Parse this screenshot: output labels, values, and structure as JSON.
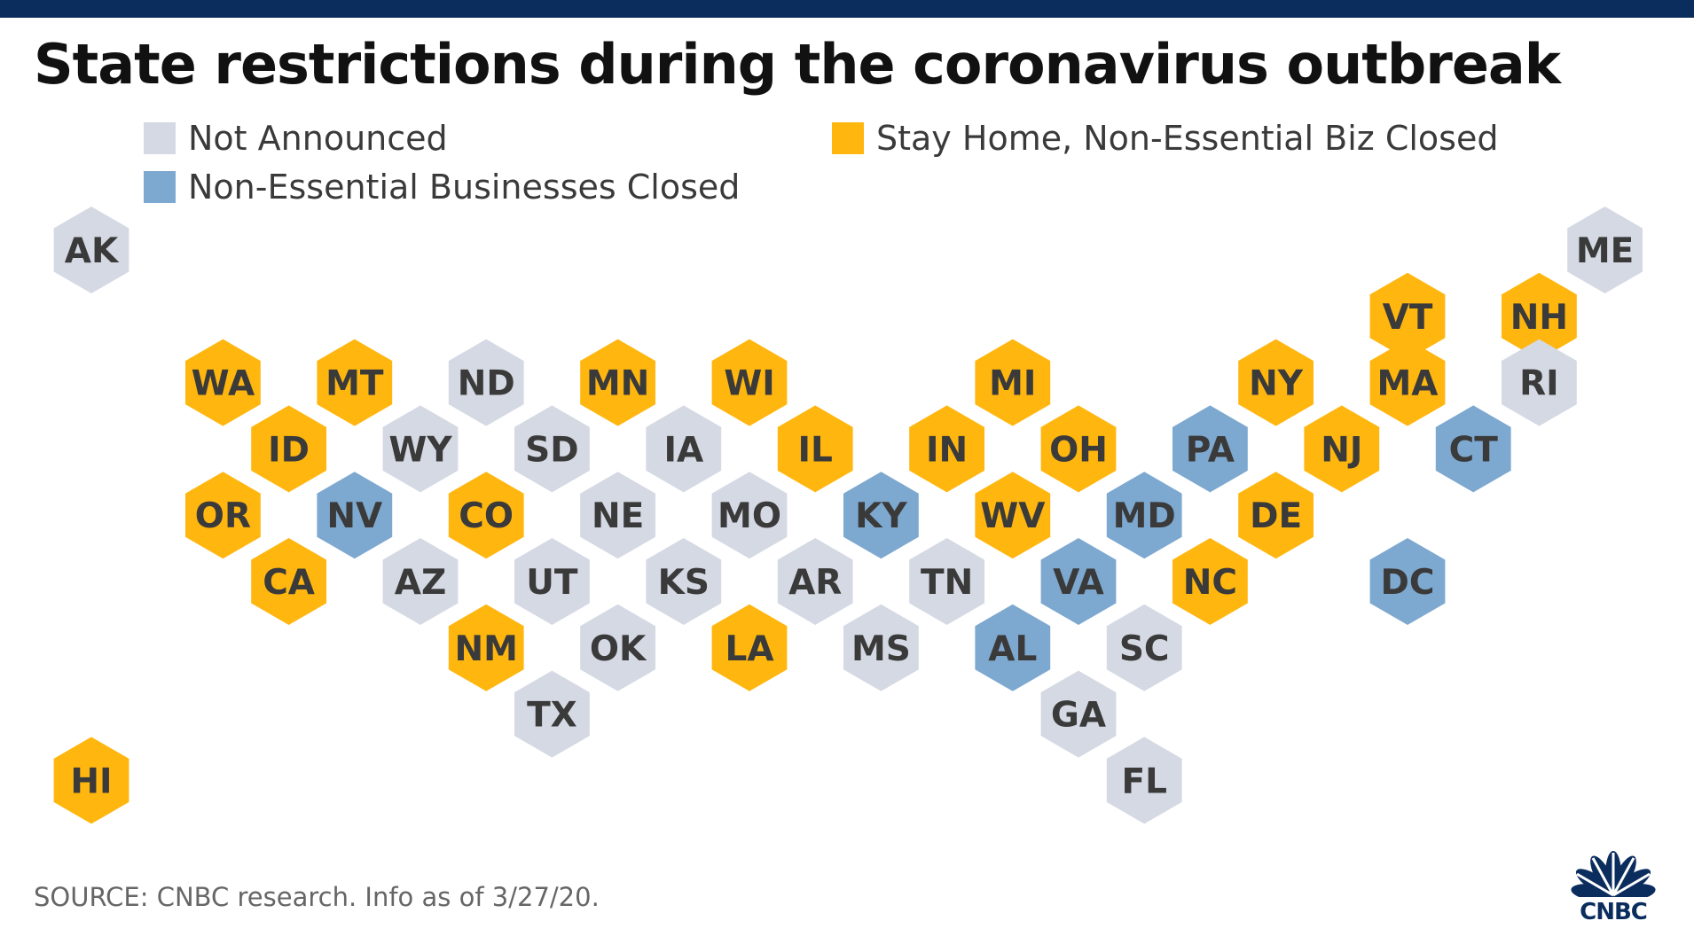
{
  "title": "State restrictions during the coronavirus outbreak",
  "legend": [
    {
      "key": "none",
      "label": "Not Announced",
      "color": "#d4d9e3"
    },
    {
      "key": "biz",
      "label": "Non-Essential Businesses Closed",
      "color": "#7da8cf"
    },
    {
      "key": "home",
      "label": "Stay Home, Non-Essential Biz Closed",
      "color": "#ffb60f"
    }
  ],
  "states": [
    {
      "code": "AK",
      "status": "none",
      "col": 0,
      "row": 0
    },
    {
      "code": "ME",
      "status": "none",
      "col": 23,
      "row": 0
    },
    {
      "code": "VT",
      "status": "home",
      "col": 20,
      "row": 1
    },
    {
      "code": "NH",
      "status": "home",
      "col": 22,
      "row": 1
    },
    {
      "code": "WA",
      "status": "home",
      "col": 2,
      "row": 2
    },
    {
      "code": "MT",
      "status": "home",
      "col": 4,
      "row": 2
    },
    {
      "code": "ND",
      "status": "none",
      "col": 6,
      "row": 2
    },
    {
      "code": "MN",
      "status": "home",
      "col": 8,
      "row": 2
    },
    {
      "code": "WI",
      "status": "home",
      "col": 10,
      "row": 2
    },
    {
      "code": "MI",
      "status": "home",
      "col": 14,
      "row": 2
    },
    {
      "code": "NY",
      "status": "home",
      "col": 18,
      "row": 2
    },
    {
      "code": "MA",
      "status": "home",
      "col": 20,
      "row": 2
    },
    {
      "code": "RI",
      "status": "none",
      "col": 22,
      "row": 2
    },
    {
      "code": "ID",
      "status": "home",
      "col": 3,
      "row": 3
    },
    {
      "code": "WY",
      "status": "none",
      "col": 5,
      "row": 3
    },
    {
      "code": "SD",
      "status": "none",
      "col": 7,
      "row": 3
    },
    {
      "code": "IA",
      "status": "none",
      "col": 9,
      "row": 3
    },
    {
      "code": "IL",
      "status": "home",
      "col": 11,
      "row": 3
    },
    {
      "code": "IN",
      "status": "home",
      "col": 13,
      "row": 3
    },
    {
      "code": "OH",
      "status": "home",
      "col": 15,
      "row": 3
    },
    {
      "code": "PA",
      "status": "biz",
      "col": 17,
      "row": 3
    },
    {
      "code": "NJ",
      "status": "home",
      "col": 19,
      "row": 3
    },
    {
      "code": "CT",
      "status": "biz",
      "col": 21,
      "row": 3
    },
    {
      "code": "OR",
      "status": "home",
      "col": 2,
      "row": 4
    },
    {
      "code": "NV",
      "status": "biz",
      "col": 4,
      "row": 4
    },
    {
      "code": "CO",
      "status": "home",
      "col": 6,
      "row": 4
    },
    {
      "code": "NE",
      "status": "none",
      "col": 8,
      "row": 4
    },
    {
      "code": "MO",
      "status": "none",
      "col": 10,
      "row": 4
    },
    {
      "code": "KY",
      "status": "biz",
      "col": 12,
      "row": 4
    },
    {
      "code": "WV",
      "status": "home",
      "col": 14,
      "row": 4
    },
    {
      "code": "MD",
      "status": "biz",
      "col": 16,
      "row": 4
    },
    {
      "code": "DE",
      "status": "home",
      "col": 18,
      "row": 4
    },
    {
      "code": "CA",
      "status": "home",
      "col": 3,
      "row": 5
    },
    {
      "code": "AZ",
      "status": "none",
      "col": 5,
      "row": 5
    },
    {
      "code": "UT",
      "status": "none",
      "col": 7,
      "row": 5
    },
    {
      "code": "KS",
      "status": "none",
      "col": 9,
      "row": 5
    },
    {
      "code": "AR",
      "status": "none",
      "col": 11,
      "row": 5
    },
    {
      "code": "TN",
      "status": "none",
      "col": 13,
      "row": 5
    },
    {
      "code": "VA",
      "status": "biz",
      "col": 15,
      "row": 5
    },
    {
      "code": "NC",
      "status": "home",
      "col": 17,
      "row": 5
    },
    {
      "code": "DC",
      "status": "biz",
      "col": 20,
      "row": 5
    },
    {
      "code": "NM",
      "status": "home",
      "col": 6,
      "row": 6
    },
    {
      "code": "OK",
      "status": "none",
      "col": 8,
      "row": 6
    },
    {
      "code": "LA",
      "status": "home",
      "col": 10,
      "row": 6
    },
    {
      "code": "MS",
      "status": "none",
      "col": 12,
      "row": 6
    },
    {
      "code": "AL",
      "status": "biz",
      "col": 14,
      "row": 6
    },
    {
      "code": "SC",
      "status": "none",
      "col": 16,
      "row": 6
    },
    {
      "code": "TX",
      "status": "none",
      "col": 7,
      "row": 7
    },
    {
      "code": "GA",
      "status": "none",
      "col": 15,
      "row": 7
    },
    {
      "code": "HI",
      "status": "home",
      "col": 0,
      "row": 8
    },
    {
      "code": "FL",
      "status": "none",
      "col": 16,
      "row": 8
    }
  ],
  "source": "SOURCE: CNBC research. Info as of 3/27/20.",
  "logo": {
    "text": "CNBC",
    "icon": "peacock-icon",
    "color": "#0b2d5e"
  }
}
